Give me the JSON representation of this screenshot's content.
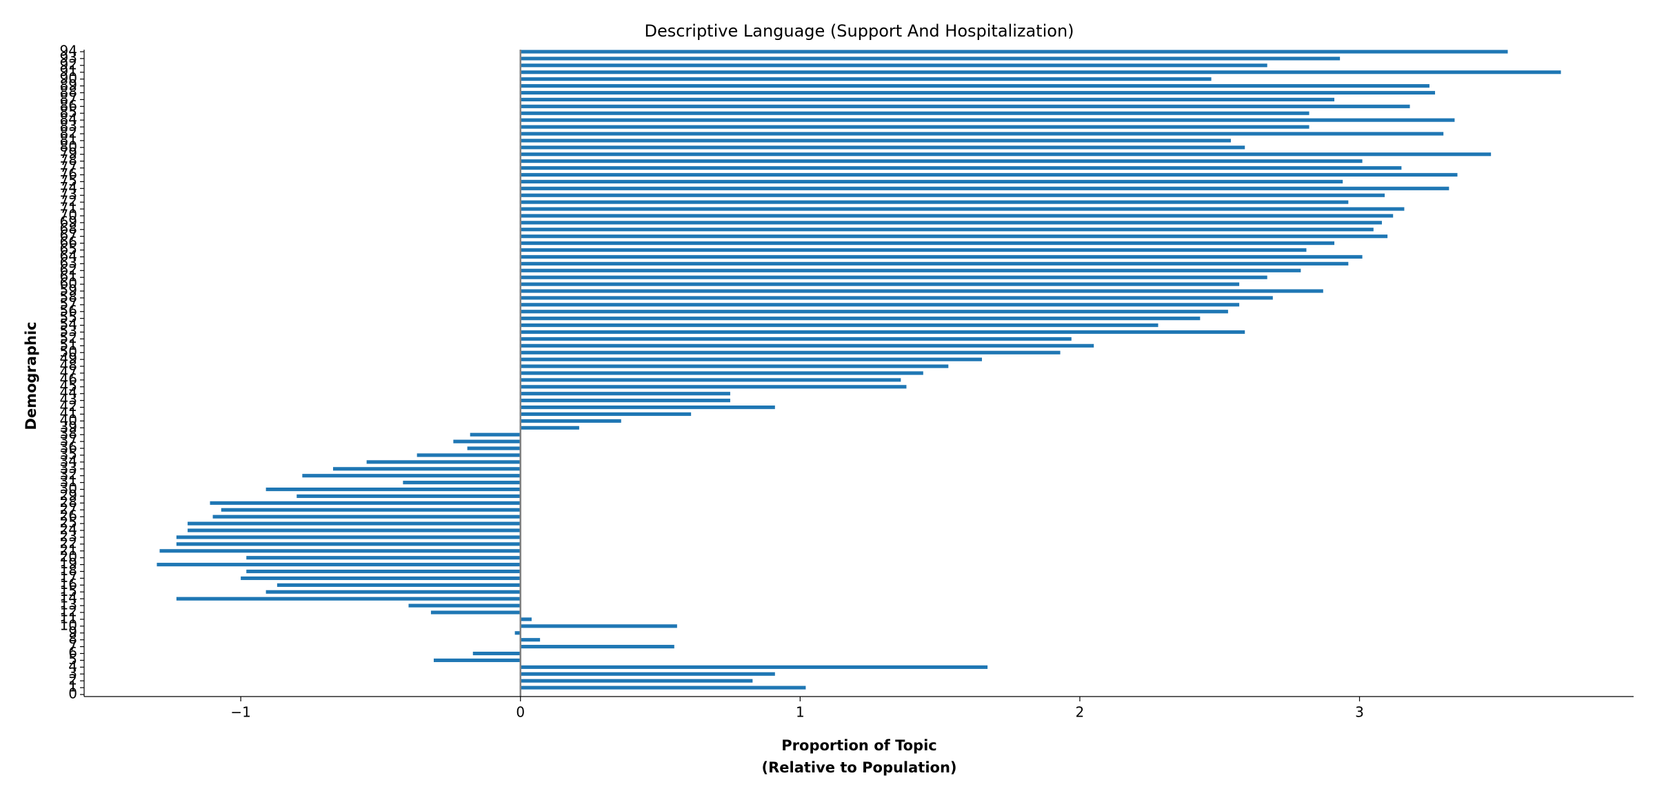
{
  "chart_data": {
    "type": "barh",
    "title": "Descriptive Language (Support And Hospitalization)",
    "xlabel": [
      "Proportion of Topic",
      "(Relative to Population)"
    ],
    "ylabel": "Demographic",
    "color": "#1f77b4",
    "categories": [
      "0",
      "1",
      "2",
      "3",
      "4",
      "5",
      "6",
      "7",
      "8",
      "9",
      "10",
      "11",
      "12",
      "13",
      "14",
      "15",
      "16",
      "17",
      "18",
      "19",
      "20",
      "21",
      "22",
      "23",
      "24",
      "25",
      "26",
      "27",
      "28",
      "29",
      "30",
      "31",
      "32",
      "33",
      "34",
      "35",
      "36",
      "37",
      "38",
      "39",
      "40",
      "41",
      "42",
      "43",
      "44",
      "45",
      "46",
      "47",
      "48",
      "49",
      "50",
      "51",
      "52",
      "53",
      "54",
      "55",
      "56",
      "57",
      "58",
      "59",
      "60",
      "61",
      "62",
      "63",
      "64",
      "65",
      "66",
      "67",
      "68",
      "69",
      "70",
      "71",
      "72",
      "73",
      "74",
      "75",
      "76",
      "77",
      "78",
      "79",
      "80",
      "81",
      "82",
      "83",
      "84",
      "85",
      "86",
      "87",
      "88",
      "89",
      "90",
      "91",
      "92",
      "93",
      "94"
    ],
    "values": [
      0,
      1.02,
      0.83,
      0.91,
      1.67,
      -0.31,
      -0.17,
      0.55,
      0.07,
      -0.02,
      0.56,
      0.04,
      -0.32,
      -0.4,
      -1.23,
      -0.91,
      -0.87,
      -1.0,
      -0.98,
      -1.3,
      -0.98,
      -1.29,
      -1.23,
      -1.23,
      -1.19,
      -1.19,
      -1.1,
      -1.07,
      -1.11,
      -0.8,
      -0.91,
      -0.42,
      -0.78,
      -0.67,
      -0.55,
      -0.37,
      -0.19,
      -0.24,
      -0.18,
      0.21,
      0.36,
      0.61,
      0.91,
      0.75,
      0.75,
      1.38,
      1.36,
      1.44,
      1.53,
      1.65,
      1.93,
      2.05,
      1.97,
      2.59,
      2.28,
      2.43,
      2.53,
      2.57,
      2.69,
      2.87,
      2.57,
      2.67,
      2.79,
      2.96,
      3.01,
      2.81,
      2.91,
      3.1,
      3.05,
      3.08,
      3.12,
      3.16,
      2.96,
      3.09,
      3.32,
      2.94,
      3.35,
      3.15,
      3.01,
      3.47,
      2.59,
      2.54,
      3.3,
      2.82,
      3.34,
      2.82,
      3.18,
      2.91,
      3.27,
      3.25,
      2.47,
      3.72,
      2.67,
      2.93,
      3.53
    ],
    "xlim": [
      -1.56,
      3.98
    ],
    "xticks": [
      {
        "value": -1,
        "label": "−1"
      },
      0,
      1,
      2,
      3
    ]
  }
}
